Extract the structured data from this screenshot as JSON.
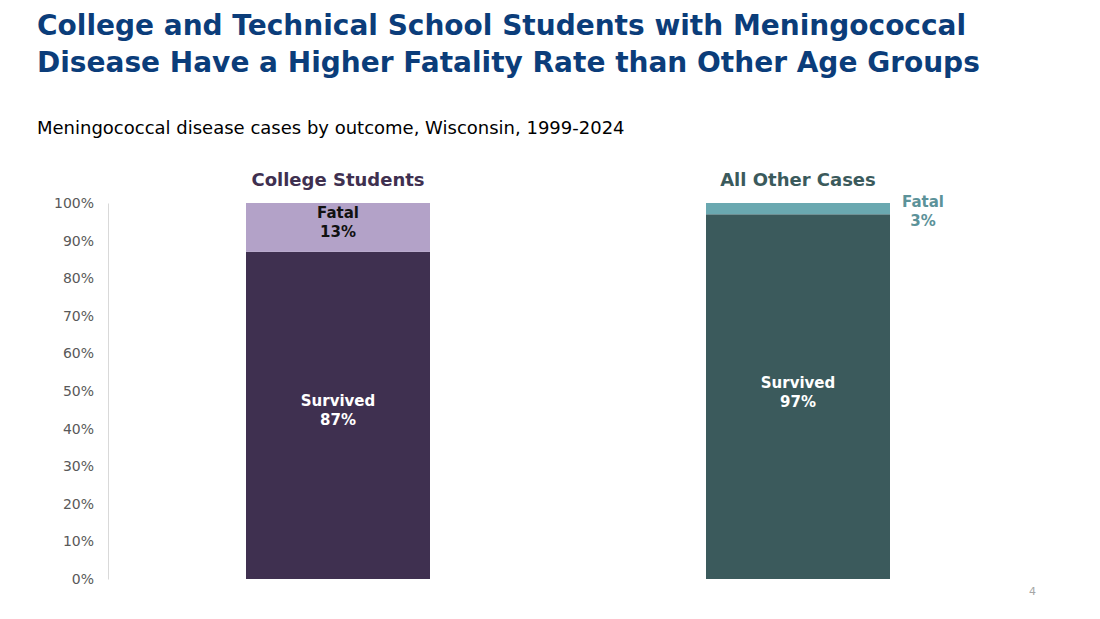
{
  "chart_data": {
    "type": "bar",
    "title": "College and Technical School Students with Meningococcal Disease Have a Higher Fatality Rate than Other Age Groups",
    "subtitle": "Meningococcal disease cases by outcome, Wisconsin, 1999-2024",
    "page_number": "4",
    "categories": [
      "College Students",
      "All Other Cases"
    ],
    "series": [
      {
        "name": "Survived",
        "colors": [
          "#3f3050",
          "#3b5a5c"
        ],
        "values": [
          87,
          97
        ],
        "value_labels": [
          "87%",
          "97%"
        ]
      },
      {
        "name": "Fatal",
        "colors": [
          "#b3a2c8",
          "#6aa8b0"
        ],
        "values": [
          13,
          3
        ],
        "value_labels": [
          "13%",
          "3%"
        ]
      }
    ],
    "ylim": [
      0,
      100
    ],
    "yticks": [
      {
        "value": 0,
        "label": "0%"
      },
      {
        "value": 10,
        "label": "10%"
      },
      {
        "value": 20,
        "label": "20%"
      },
      {
        "value": 30,
        "label": "30%"
      },
      {
        "value": 40,
        "label": "40%"
      },
      {
        "value": 50,
        "label": "50%"
      },
      {
        "value": 60,
        "label": "60%"
      },
      {
        "value": 70,
        "label": "70%"
      },
      {
        "value": 80,
        "label": "80%"
      },
      {
        "value": 90,
        "label": "90%"
      },
      {
        "value": 100,
        "label": "100%"
      }
    ],
    "stacked": true,
    "data_labels": true,
    "grid": false
  }
}
